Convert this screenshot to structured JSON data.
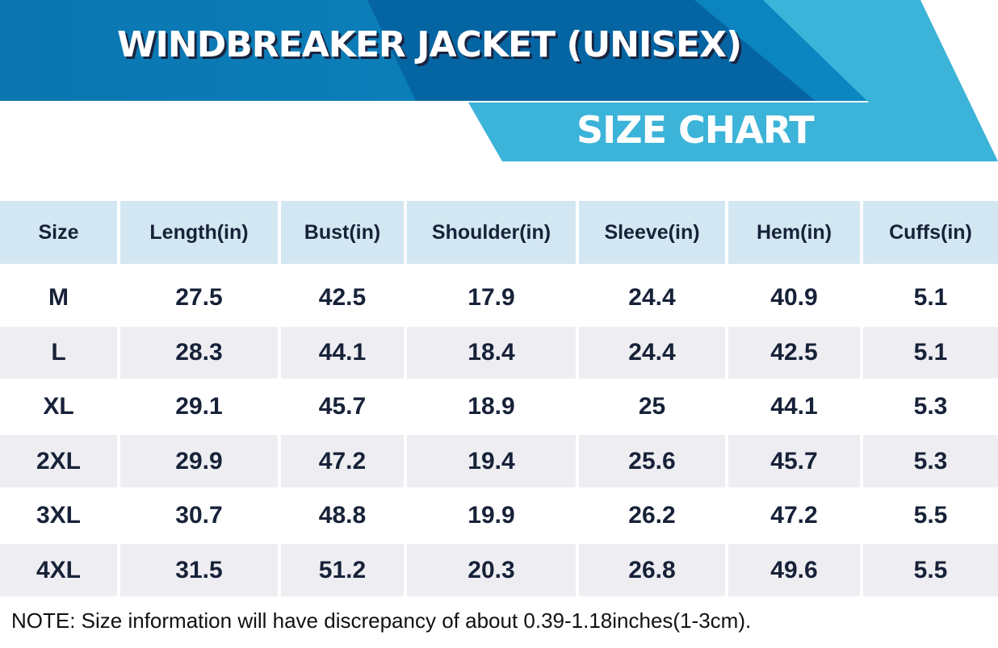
{
  "header": {
    "title": "WINDBREAKER JACKET (UNISEX)",
    "subtitle": "SIZE CHART"
  },
  "table": {
    "columns": [
      "Size",
      "Length(in)",
      "Bust(in)",
      "Shoulder(in)",
      "Sleeve(in)",
      "Hem(in)",
      "Cuffs(in)"
    ],
    "rows": [
      [
        "M",
        "27.5",
        "42.5",
        "17.9",
        "24.4",
        "40.9",
        "5.1"
      ],
      [
        "L",
        "28.3",
        "44.1",
        "18.4",
        "24.4",
        "42.5",
        "5.1"
      ],
      [
        "XL",
        "29.1",
        "45.7",
        "18.9",
        "25",
        "44.1",
        "5.3"
      ],
      [
        "2XL",
        "29.9",
        "47.2",
        "19.4",
        "25.6",
        "45.7",
        "5.3"
      ],
      [
        "3XL",
        "30.7",
        "48.8",
        "19.9",
        "26.2",
        "47.2",
        "5.5"
      ],
      [
        "4XL",
        "31.5",
        "51.2",
        "20.3",
        "26.8",
        "49.6",
        "5.5"
      ]
    ]
  },
  "note": "NOTE: Size information will have discrepancy of about 0.39-1.18inches(1-3cm)."
}
